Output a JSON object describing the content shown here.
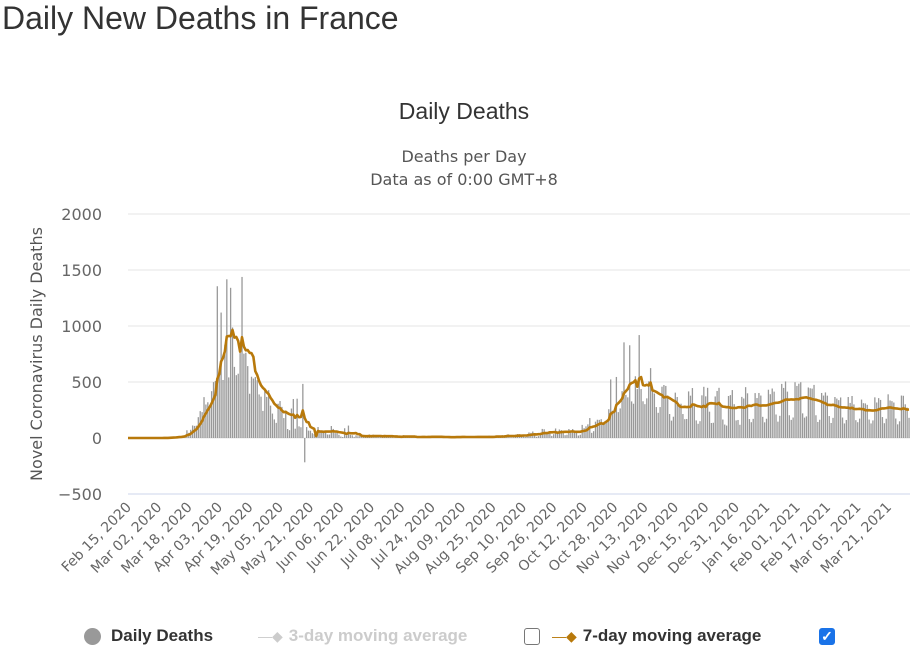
{
  "page_title": "Daily New Deaths in France",
  "chart_data": {
    "type": "bar",
    "title": "Daily Deaths",
    "subtitle": [
      "Deaths per Day",
      "Data as of 0:00 GMT+8"
    ],
    "ylabel": "Novel Coronavirus Daily Deaths",
    "xlabel": "",
    "ylim": [
      -500,
      2000
    ],
    "yticks": [
      "2000",
      "1500",
      "1000",
      "500",
      "0",
      "−500"
    ],
    "ytick_values": [
      2000,
      1500,
      1000,
      500,
      0,
      -500
    ],
    "grid": true,
    "x_start": "2020-02-15",
    "x_end": "2021-04-01",
    "xtick_labels": [
      "Feb 15, 2020",
      "Mar 02, 2020",
      "Mar 18, 2020",
      "Apr 03, 2020",
      "Apr 19, 2020",
      "May 05, 2020",
      "May 21, 2020",
      "Jun 06, 2020",
      "Jun 22, 2020",
      "Jul 08, 2020",
      "Jul 24, 2020",
      "Aug 09, 2020",
      "Aug 25, 2020",
      "Sep 10, 2020",
      "Sep 26, 2020",
      "Oct 12, 2020",
      "Oct 28, 2020",
      "Nov 13, 2020",
      "Nov 29, 2020",
      "Dec 15, 2020",
      "Dec 31, 2020",
      "Jan 16, 2021",
      "Feb 01, 2021",
      "Feb 17, 2021",
      "Mar 05, 2021",
      "Mar 21, 2021"
    ],
    "legend_position": "bottom",
    "series": [
      {
        "name": "Daily Deaths",
        "type": "bar",
        "color": "#999999",
        "visible": true,
        "values": [
          0,
          0,
          0,
          0,
          0,
          0,
          0,
          0,
          0,
          0,
          0,
          0,
          0,
          1,
          0,
          0,
          1,
          0,
          1,
          2,
          2,
          3,
          5,
          6,
          3,
          11,
          15,
          13,
          12,
          21,
          27,
          69,
          46,
          73,
          112,
          108,
          110,
          186,
          240,
          231,
          365,
          299,
          319,
          292,
          418,
          499,
          509,
          1355,
          590,
          1120,
          518,
          833,
          1417,
          541,
          1341,
          987,
          635,
          561,
          574,
          762,
          1438,
          753,
          761,
          642,
          395,
          547,
          531,
          544,
          516,
          389,
          369,
          242,
          437,
          367,
          427,
          289,
          218,
          166,
          135,
          306,
          330,
          278,
          178,
          243,
          80,
          70,
          263,
          348,
          83,
          351,
          104,
          96,
          483,
          -217,
          98,
          66,
          65,
          43,
          35,
          31,
          98,
          65,
          66,
          52,
          57,
          31,
          31,
          107,
          81,
          44,
          46,
          29,
          13,
          9,
          87,
          23,
          111,
          28,
          24,
          10,
          24,
          16,
          24,
          14,
          14,
          12,
          9,
          31,
          11,
          30,
          17,
          11,
          14,
          12,
          12,
          22,
          25,
          15,
          15,
          11,
          1,
          8,
          14,
          16,
          10,
          25,
          11,
          4,
          7,
          15,
          15,
          9,
          9,
          1,
          4,
          15,
          14,
          12,
          11,
          10,
          6,
          5,
          14,
          16,
          12,
          10,
          4,
          2,
          3,
          8,
          11,
          13,
          12,
          9,
          2,
          3,
          17,
          10,
          11,
          13,
          4,
          2,
          4,
          19,
          17,
          11,
          11,
          3,
          3,
          4,
          21,
          14,
          15,
          12,
          16,
          5,
          6,
          25,
          20,
          27,
          33,
          7,
          6,
          7,
          30,
          35,
          34,
          27,
          16,
          9,
          14,
          50,
          46,
          58,
          40,
          11,
          17,
          26,
          81,
          78,
          52,
          52,
          49,
          19,
          34,
          85,
          38,
          76,
          70,
          62,
          25,
          29,
          80,
          65,
          80,
          54,
          55,
          22,
          29,
          117,
          88,
          104,
          122,
          178,
          46,
          61,
          146,
          163,
          162,
          168,
          137,
          128,
          138,
          257,
          523,
          244,
          235,
          545,
          231,
          264,
          418,
          854,
          385,
          363,
          828,
          327,
          306,
          551,
          437,
          919,
          437,
          328,
          302,
          354,
          506,
          624,
          425,
          397,
          276,
          225,
          276,
          458,
          473,
          465,
          380,
          214,
          155,
          190,
          405,
          366,
          301,
          306,
          214,
          168,
          170,
          416,
          378,
          446,
          292,
          157,
          127,
          150,
          381,
          457,
          372,
          448,
          235,
          134,
          136,
          371,
          420,
          448,
          291,
          165,
          120,
          111,
          375,
          383,
          428,
          302,
          157,
          161,
          118,
          367,
          353,
          454,
          399,
          169,
          141,
          171,
          401,
          357,
          402,
          379,
          189,
          140,
          172,
          431,
          391,
          442,
          414,
          210,
          146,
          198,
          483,
          447,
          505,
          414,
          203,
          162,
          183,
          498,
          465,
          485,
          498,
          220,
          182,
          193,
          451,
          444,
          441,
          474,
          203,
          143,
          163,
          402,
          379,
          407,
          378,
          196,
          134,
          180,
          366,
          352,
          338,
          362,
          183,
          130,
          161,
          366,
          313,
          375,
          300,
          159,
          141,
          173,
          343,
          311,
          309,
          296,
          165,
          130,
          157,
          363,
          317,
          356,
          340,
          187,
          132,
          172,
          390,
          335,
          329,
          317,
          174,
          122,
          149,
          379,
          377,
          301,
          271,
          180
        ]
      },
      {
        "name": "3-day moving average",
        "type": "line",
        "color": "#cccccc",
        "visible": false
      },
      {
        "name": "7-day moving average",
        "type": "line",
        "color": "#b8790b",
        "visible": true
      }
    ]
  }
}
